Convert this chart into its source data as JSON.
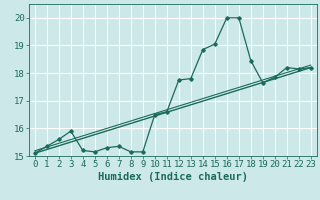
{
  "xlabel": "Humidex (Indice chaleur)",
  "xlim": [
    -0.5,
    23.5
  ],
  "ylim": [
    15,
    20.5
  ],
  "yticks": [
    15,
    16,
    17,
    18,
    19,
    20
  ],
  "xticks": [
    0,
    1,
    2,
    3,
    4,
    5,
    6,
    7,
    8,
    9,
    10,
    11,
    12,
    13,
    14,
    15,
    16,
    17,
    18,
    19,
    20,
    21,
    22,
    23
  ],
  "bg_color": "#cde8e8",
  "grid_color": "#ffffff",
  "line_color": "#1a6b5a",
  "data_x": [
    0,
    1,
    2,
    3,
    4,
    5,
    6,
    7,
    8,
    9,
    10,
    11,
    12,
    13,
    14,
    15,
    16,
    17,
    18,
    19,
    20,
    21,
    22,
    23
  ],
  "data_y": [
    15.1,
    15.35,
    15.6,
    15.9,
    15.2,
    15.15,
    15.3,
    15.35,
    15.15,
    15.15,
    16.5,
    16.6,
    17.75,
    17.8,
    18.85,
    19.05,
    20.0,
    20.0,
    18.45,
    17.65,
    17.85,
    18.2,
    18.15,
    18.2
  ],
  "trend_y_start": 15.1,
  "trend_y_end": 18.2,
  "font_color": "#1a6b5a",
  "tick_fontsize": 6.5,
  "label_fontsize": 7.5
}
